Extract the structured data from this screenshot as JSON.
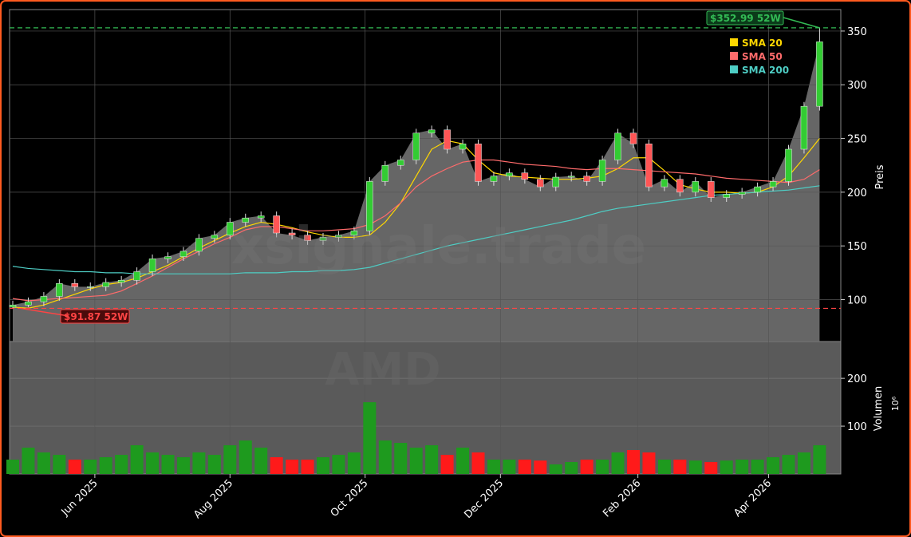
{
  "chart_data": {
    "type": "candlestick",
    "ticker": "AMD",
    "watermark": "xsignale.trade",
    "categories": [
      null,
      null,
      null,
      null,
      null,
      null,
      null,
      null,
      null,
      null,
      null,
      null,
      null,
      null,
      null,
      null,
      null,
      null,
      null,
      null,
      null,
      null,
      null,
      null,
      null,
      null,
      null,
      null,
      null,
      null,
      null,
      null,
      null,
      null,
      null,
      null,
      null,
      null,
      null,
      null,
      null,
      null,
      null,
      null,
      null,
      null,
      null,
      null,
      null,
      null,
      null,
      null,
      null
    ],
    "open": [
      93,
      95,
      98,
      103,
      115,
      112,
      112,
      116,
      118,
      126,
      138,
      140,
      145,
      157,
      160,
      172,
      176,
      178,
      162,
      160,
      155,
      158,
      160,
      164,
      210,
      225,
      230,
      255,
      258,
      240,
      245,
      210,
      215,
      218,
      212,
      205,
      214,
      215,
      210,
      230,
      255,
      245,
      205,
      212,
      200,
      210,
      195,
      198,
      200,
      205,
      210,
      240,
      280
    ],
    "high": [
      99,
      102,
      107,
      119,
      119,
      116,
      120,
      122,
      130,
      142,
      144,
      149,
      161,
      164,
      176,
      180,
      182,
      182,
      166,
      164,
      162,
      164,
      168,
      214,
      229,
      234,
      259,
      262,
      262,
      249,
      249,
      219,
      222,
      222,
      216,
      218,
      219,
      219,
      234,
      259,
      259,
      249,
      216,
      216,
      214,
      214,
      202,
      204,
      209,
      214,
      244,
      284,
      352.99
    ],
    "low": [
      91.87,
      93,
      94,
      99,
      108,
      108,
      108,
      112,
      114,
      122,
      134,
      136,
      141,
      153,
      156,
      168,
      172,
      158,
      156,
      151,
      151,
      154,
      156,
      160,
      206,
      221,
      226,
      251,
      236,
      236,
      206,
      206,
      211,
      208,
      201,
      201,
      210,
      206,
      206,
      226,
      241,
      201,
      201,
      196,
      196,
      191,
      191,
      194,
      196,
      201,
      206,
      236,
      276
    ],
    "close": [
      95,
      98,
      103,
      115,
      112,
      112,
      116,
      118,
      126,
      138,
      140,
      145,
      157,
      160,
      172,
      176,
      178,
      162,
      160,
      155,
      158,
      160,
      164,
      210,
      225,
      230,
      255,
      258,
      240,
      245,
      210,
      215,
      218,
      212,
      205,
      214,
      215,
      210,
      230,
      255,
      245,
      205,
      212,
      200,
      210,
      195,
      198,
      200,
      205,
      210,
      240,
      280,
      340
    ],
    "up_color": "#33cc33",
    "down_color": "#ff5555",
    "area_color": "#666666",
    "volume": [
      30,
      55,
      45,
      40,
      30,
      30,
      35,
      40,
      60,
      45,
      40,
      35,
      45,
      40,
      60,
      70,
      55,
      35,
      30,
      30,
      35,
      40,
      45,
      150,
      70,
      65,
      55,
      60,
      40,
      55,
      45,
      30,
      30,
      30,
      28,
      20,
      25,
      30,
      30,
      45,
      50,
      45,
      30,
      30,
      28,
      25,
      28,
      30,
      30,
      35,
      40,
      45,
      60
    ],
    "volume_up_color": "#1e9a1e",
    "volume_down_color": "#ff1a1a",
    "series": [
      {
        "name": "SMA 20",
        "color": "#ffd700",
        "values": [
          93,
          92,
          95,
          100,
          105,
          110,
          114,
          116,
          120,
          126,
          132,
          140,
          148,
          155,
          162,
          168,
          172,
          170,
          167,
          163,
          160,
          158,
          158,
          160,
          172,
          190,
          215,
          240,
          248,
          245,
          230,
          218,
          215,
          214,
          213,
          212,
          212,
          213,
          215,
          222,
          232,
          232,
          220,
          207,
          203,
          200,
          200,
          199,
          200,
          205,
          215,
          232,
          250
        ]
      },
      {
        "name": "SMA 50",
        "color": "#ff6b6b",
        "values": [
          101,
          99,
          100,
          101,
          102,
          103,
          104,
          108,
          115,
          122,
          130,
          138,
          145,
          152,
          158,
          165,
          168,
          168,
          166,
          164,
          164,
          165,
          166,
          170,
          178,
          190,
          205,
          215,
          222,
          228,
          230,
          230,
          228,
          226,
          225,
          224,
          222,
          221,
          222,
          222,
          221,
          220,
          219,
          218,
          217,
          215,
          213,
          212,
          211,
          210,
          209,
          212,
          221
        ]
      },
      {
        "name": "SMA 200",
        "color": "#4ecdc4",
        "values": [
          131,
          129,
          128,
          127,
          126,
          126,
          125,
          125,
          124,
          124,
          124,
          124,
          124,
          124,
          124,
          125,
          125,
          125,
          126,
          126,
          127,
          127,
          128,
          130,
          134,
          138,
          142,
          146,
          150,
          153,
          156,
          159,
          162,
          165,
          168,
          171,
          174,
          178,
          182,
          185,
          187,
          189,
          191,
          193,
          195,
          197,
          198,
          199,
          200,
          201,
          202,
          204,
          206
        ]
      }
    ],
    "annotations": [
      {
        "text": "$352.99 52W",
        "value": 352.99,
        "color": "#33bb55"
      },
      {
        "text": "$91.87 52W",
        "value": 91.87,
        "color": "#ff4444"
      }
    ],
    "ylabel": "Preis",
    "ylim": [
      61,
      370
    ],
    "yticks": [
      100,
      150,
      200,
      250,
      300,
      350
    ],
    "volume_label": "Volumen",
    "volume_unit": "10⁶",
    "volume_lim": [
      0,
      277
    ],
    "volume_ticks": [
      100,
      200
    ],
    "xticks": [
      {
        "value": 5.29,
        "label": "Jun 2025"
      },
      {
        "value": 14,
        "label": "Aug 2025"
      },
      {
        "value": 22.71,
        "label": "Oct 2025"
      },
      {
        "value": 31.43,
        "label": "Dec 2025"
      },
      {
        "value": 40.29,
        "label": "Feb 2026"
      },
      {
        "value": 48.71,
        "label": "Apr 2026"
      }
    ],
    "grid": true
  }
}
